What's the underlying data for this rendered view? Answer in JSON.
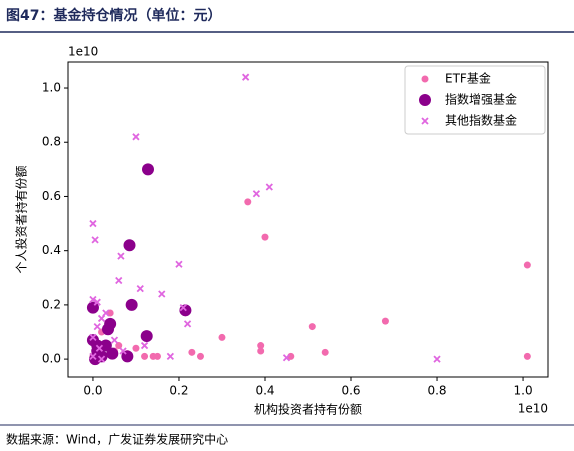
{
  "header": {
    "title": "图47：基金持仓情况（单位：元）"
  },
  "chart_data": {
    "type": "scatter",
    "x_label": "机构投资者持有份额",
    "y_label": "个人投资者持有份额",
    "x_offset_label": "1e10",
    "y_offset_label": "1e10",
    "xlim": [
      -0.058,
      1.058
    ],
    "ylim": [
      -0.066,
      1.096
    ],
    "xticks": [
      {
        "value": 0,
        "label": "0.0"
      },
      0.2,
      0.4,
      0.6,
      0.8,
      {
        "value": 1,
        "label": "1.0"
      }
    ],
    "yticks": [
      {
        "value": 0,
        "label": "0.0"
      },
      0.2,
      0.4,
      0.6,
      0.8,
      {
        "value": 1,
        "label": "1.0"
      }
    ],
    "legend": "upper right",
    "series": [
      {
        "name": "ETF基金",
        "color": "#f26aae",
        "marker": "o",
        "x": [
          0.36,
          0.4,
          1.01,
          0.51,
          0.68,
          0.3,
          0.39,
          0.39,
          0.54,
          0.46,
          1.01,
          0.23,
          0.25,
          0.15,
          0.14,
          0.12,
          0.08,
          0.05,
          0.03,
          0.02,
          0.01,
          0.0,
          0.005,
          0.04,
          0.06,
          0.1
        ],
        "y": [
          0.58,
          0.45,
          0.347,
          0.12,
          0.14,
          0.08,
          0.05,
          0.03,
          0.025,
          0.01,
          0.01,
          0.025,
          0.01,
          0.01,
          0.01,
          0.01,
          0.02,
          0.03,
          0.05,
          0.1,
          0.02,
          0.01,
          0.03,
          0.17,
          0.05,
          0.04
        ]
      },
      {
        "name": "指数增强基金",
        "color": "#8b008b",
        "marker": "O",
        "x": [
          0.128,
          0.085,
          0.09,
          0.215,
          0.125,
          0.0,
          0.04,
          0.035,
          0.0,
          0.01,
          0.02,
          0.005,
          0.03,
          0.045,
          0.08,
          0.01
        ],
        "y": [
          0.7,
          0.42,
          0.2,
          0.18,
          0.085,
          0.19,
          0.13,
          0.11,
          0.07,
          0.03,
          0.01,
          0.0,
          0.05,
          0.02,
          0.01,
          0.05
        ]
      },
      {
        "name": "其他指数基金",
        "color": "#e066e0",
        "marker": "x",
        "x": [
          0.355,
          0.1,
          0.0,
          0.005,
          0.38,
          0.41,
          0.065,
          0.2,
          0.06,
          0.16,
          0.11,
          0.21,
          0.22,
          0.01,
          0.0,
          0.8,
          0.45,
          0.02,
          0.03,
          0.01,
          0.0,
          0.05,
          0.07,
          0.12,
          0.18,
          0.0,
          0.02,
          0.015
        ],
        "y": [
          1.04,
          0.82,
          0.5,
          0.44,
          0.61,
          0.635,
          0.38,
          0.35,
          0.29,
          0.24,
          0.26,
          0.19,
          0.13,
          0.21,
          0.22,
          0.0,
          0.005,
          0.15,
          0.17,
          0.12,
          0.08,
          0.07,
          0.03,
          0.05,
          0.01,
          0.01,
          0.0,
          0.04
        ]
      }
    ]
  },
  "footer": {
    "source": "数据来源：Wind，广发证券发展研究中心"
  }
}
